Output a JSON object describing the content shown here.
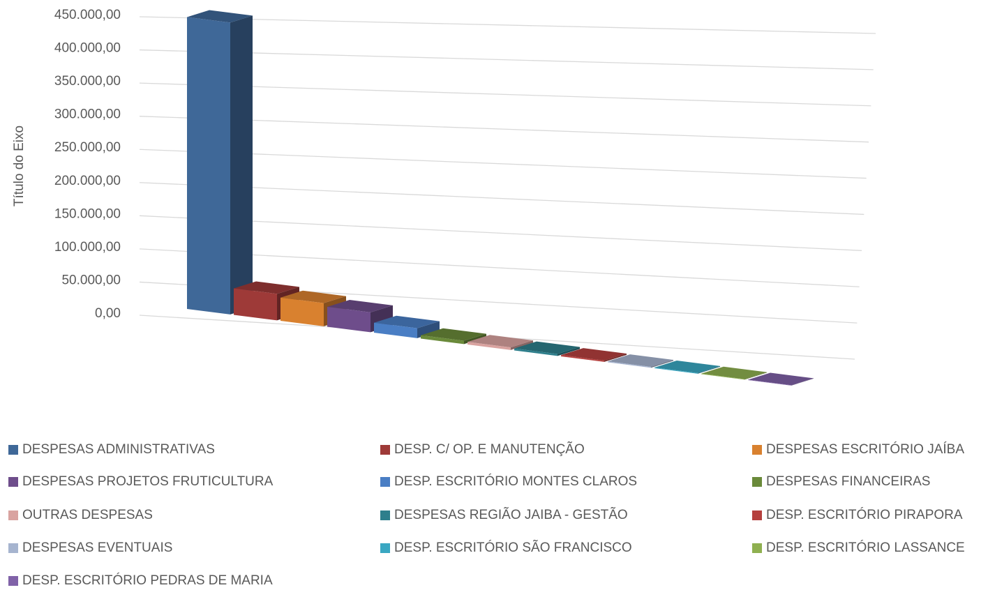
{
  "chart_data": {
    "type": "bar3d",
    "y_axis_label": "Título do Eixo",
    "categories": [
      null
    ],
    "ylim": [
      0,
      450000
    ],
    "yticks": [
      {
        "value": 0,
        "label": "0,00"
      },
      {
        "value": 50000,
        "label": "50.000,00"
      },
      {
        "value": 100000,
        "label": "100.000,00"
      },
      {
        "value": 150000,
        "label": "150.000,00"
      },
      {
        "value": 200000,
        "label": "200.000,00"
      },
      {
        "value": 250000,
        "label": "250.000,00"
      },
      {
        "value": 300000,
        "label": "300.000,00"
      },
      {
        "value": 350000,
        "label": "350.000,00"
      },
      {
        "value": 400000,
        "label": "400.000,00"
      },
      {
        "value": 450000,
        "label": "450.000,00"
      }
    ],
    "grid": true,
    "legend": "bottom",
    "series": [
      {
        "name": "DESPESAS ADMINISTRATIVAS",
        "color": "#3f6898",
        "values": [
          440000
        ]
      },
      {
        "name": "DESP. C/ OP. E MANUTENÇÃO",
        "color": "#9e3a38",
        "values": [
          40000
        ]
      },
      {
        "name": "DESPESAS ESCRITÓRIO JAÍBA",
        "color": "#d9812f",
        "values": [
          35000
        ]
      },
      {
        "name": "DESPESAS PROJETOS FRUTICULTURA",
        "color": "#6e4d8b",
        "values": [
          30000
        ]
      },
      {
        "name": "DESP. ESCRITÓRIO MONTES CLAROS",
        "color": "#4a7ec4",
        "values": [
          15000
        ]
      },
      {
        "name": "DESPESAS FINANCEIRAS",
        "color": "#6a8a3a",
        "values": [
          5000
        ]
      },
      {
        "name": "OUTRAS DESPESAS",
        "color": "#d9a3a0",
        "values": [
          4000
        ]
      },
      {
        "name": "DESPESAS REGIÃO JAIBA - GESTÃO",
        "color": "#2e7f8c",
        "values": [
          3000
        ]
      },
      {
        "name": "DESP. ESCRITÓRIO PIRAPORA",
        "color": "#b5403e",
        "values": [
          2000
        ]
      },
      {
        "name": "DESPESAS EVENTUAIS",
        "color": "#a6b4cf",
        "values": [
          1500
        ]
      },
      {
        "name": "DESP. ESCRITÓRIO SÃO FRANCISCO",
        "color": "#3aa7c2",
        "values": [
          1000
        ]
      },
      {
        "name": "DESP. ESCRITÓRIO LASSANCE",
        "color": "#8fb050",
        "values": [
          800
        ]
      },
      {
        "name": "DESP. ESCRITÓRIO PEDRAS DE MARIA",
        "color": "#8062a8",
        "values": [
          500
        ]
      }
    ]
  }
}
